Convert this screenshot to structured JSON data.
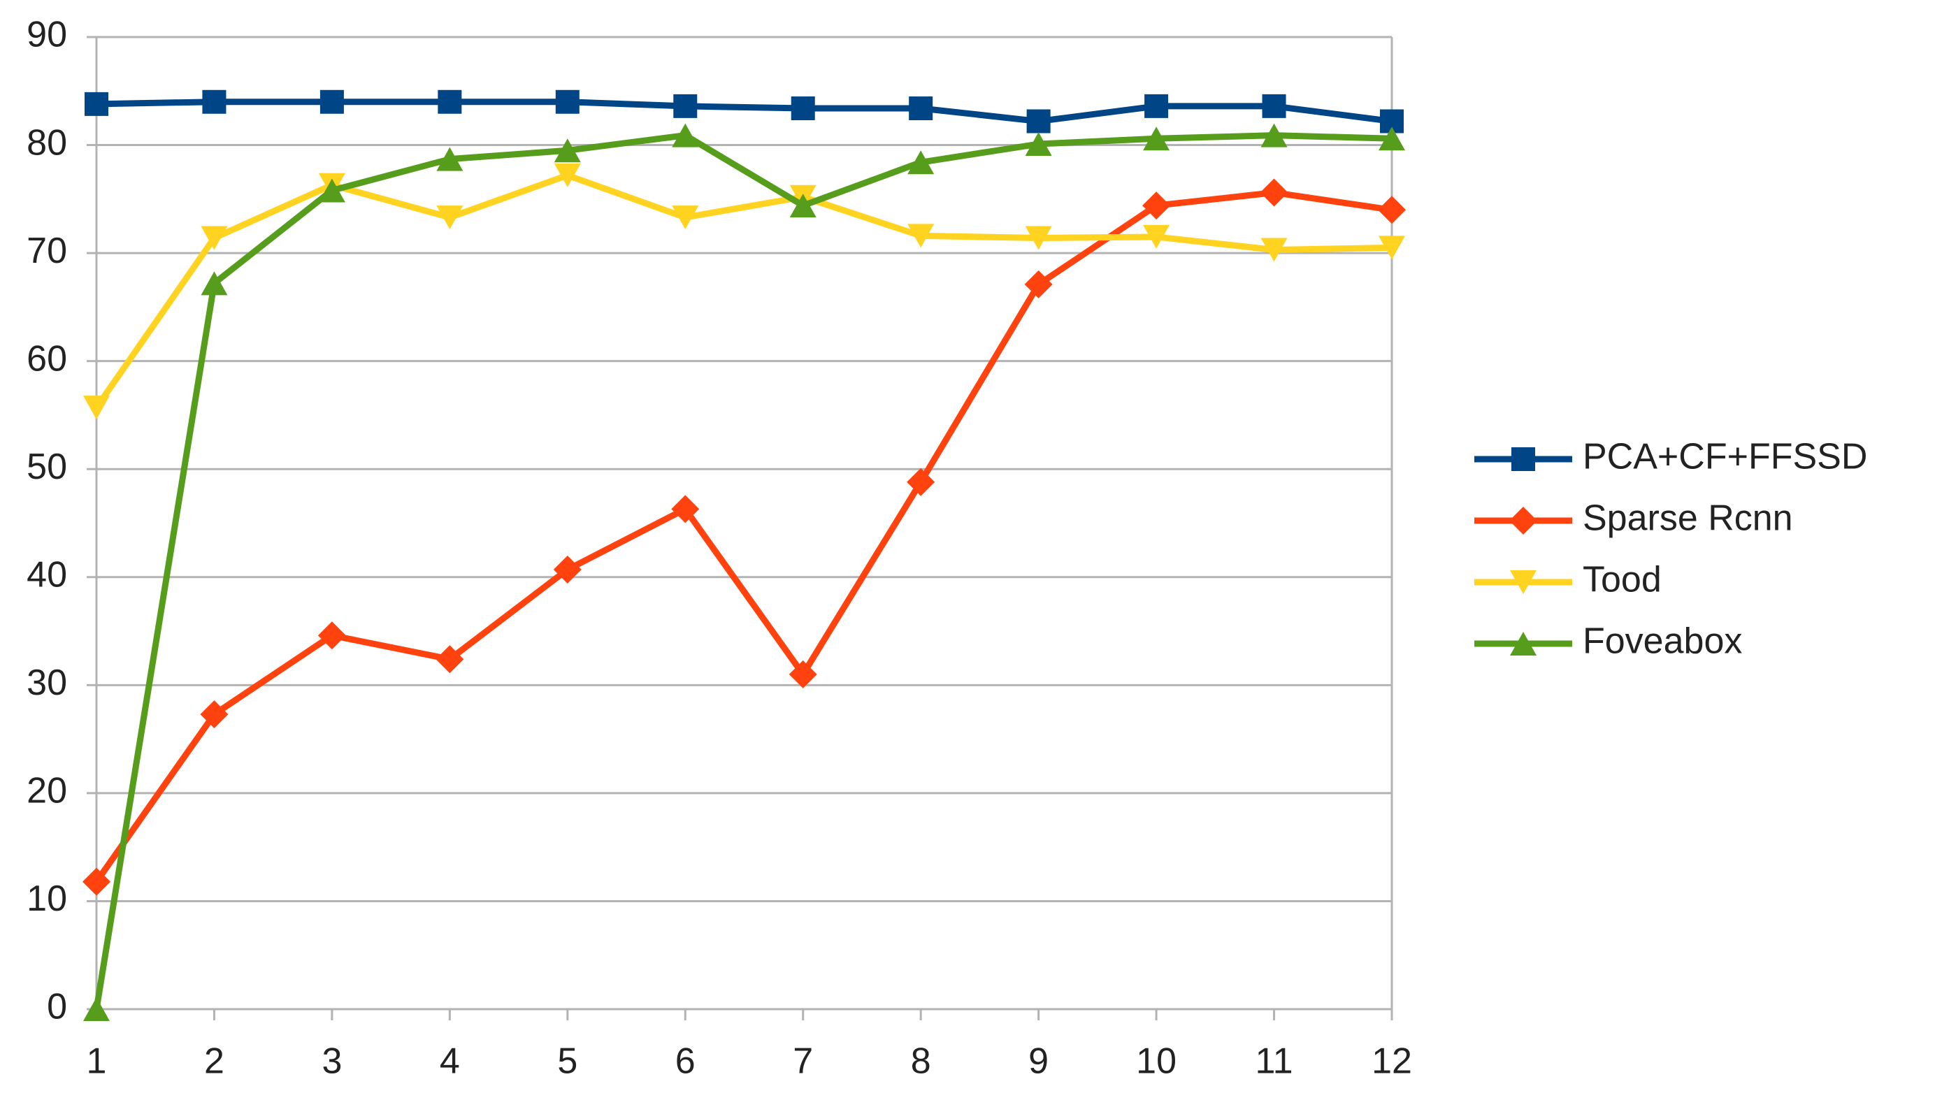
{
  "chart_data": {
    "type": "line",
    "x": [
      1,
      2,
      3,
      4,
      5,
      6,
      7,
      8,
      9,
      10,
      11,
      12
    ],
    "xlim": [
      1,
      12
    ],
    "xticks": [
      1,
      2,
      3,
      4,
      5,
      6,
      7,
      8,
      9,
      10,
      11,
      12
    ],
    "ylim": [
      0,
      90
    ],
    "yticks": [
      0,
      10,
      20,
      30,
      40,
      50,
      60,
      70,
      80,
      90
    ],
    "grid": true,
    "legend": "right",
    "series": [
      {
        "name": "PCA+CF+FFSSD",
        "color": "#004586",
        "marker": "square",
        "values": [
          83.8,
          84,
          84,
          84,
          84,
          83.6,
          83.4,
          83.4,
          82.2,
          83.6,
          83.6,
          82.2
        ]
      },
      {
        "name": "Sparse Rcnn",
        "color": "#ff420e",
        "marker": "diamond",
        "values": [
          11.8,
          27.3,
          34.6,
          32.4,
          40.7,
          46.3,
          31,
          48.8,
          67.1,
          74.4,
          75.6,
          74
        ]
      },
      {
        "name": "Tood",
        "color": "#ffd320",
        "marker": "triangle-down",
        "values": [
          55.7,
          71.4,
          76.3,
          73.3,
          77.2,
          73.3,
          75.2,
          71.6,
          71.4,
          71.5,
          70.3,
          70.5
        ]
      },
      {
        "name": "Foveabox",
        "color": "#579d1c",
        "marker": "triangle-up",
        "values": [
          0,
          67.2,
          75.8,
          78.7,
          79.5,
          80.9,
          74.4,
          78.4,
          80.1,
          80.6,
          80.9,
          80.6
        ]
      }
    ]
  }
}
